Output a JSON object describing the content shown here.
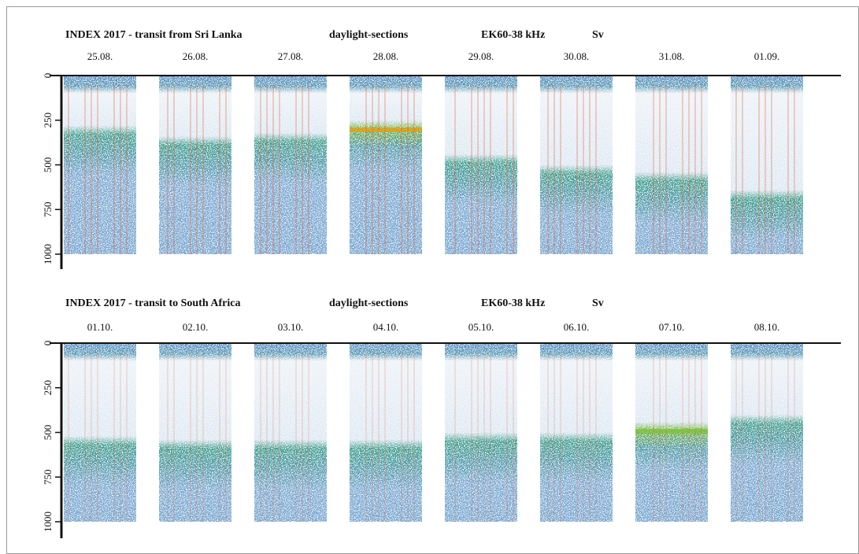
{
  "panels": [
    {
      "title": "INDEX 2017 - transit from Sri Lanka",
      "mode": "daylight-sections",
      "instrument": "EK60-38 kHz",
      "variable": "Sv",
      "dates": [
        "25.08.",
        "26.08.",
        "27.08.",
        "28.08.",
        "29.08.",
        "30.08.",
        "31.08.",
        "01.09."
      ],
      "ylim": [
        0,
        1000
      ],
      "yticks": [
        0,
        250,
        500,
        750,
        1000
      ]
    },
    {
      "title": "INDEX 2017 - transit to South Africa",
      "mode": "daylight-sections",
      "instrument": "EK60-38 kHz",
      "variable": "Sv",
      "dates": [
        "01.10.",
        "02.10.",
        "03.10.",
        "04.10.",
        "05.10.",
        "06.10.",
        "07.10.",
        "08.10."
      ],
      "ylim": [
        0,
        1000
      ],
      "yticks": [
        0,
        250,
        500,
        750,
        1000
      ]
    }
  ]
}
